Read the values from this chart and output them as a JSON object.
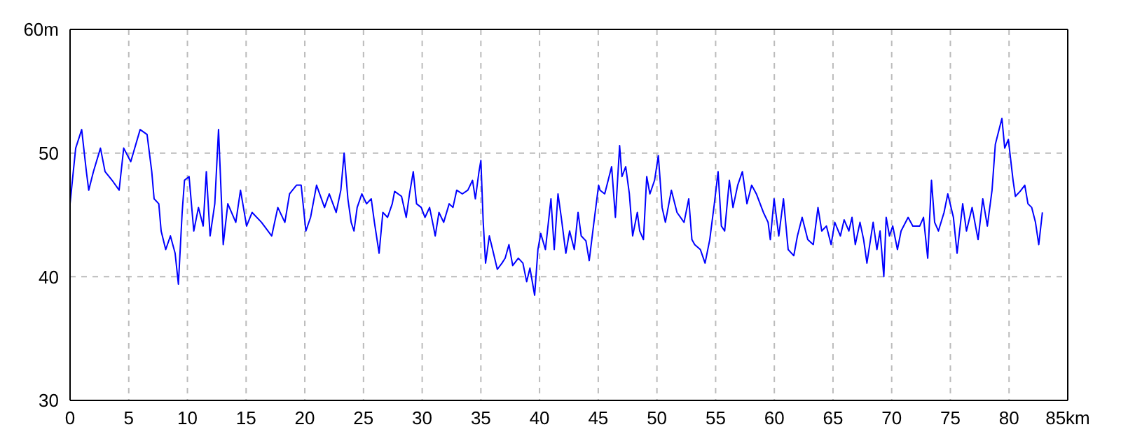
{
  "chart_data": {
    "type": "line",
    "color": "#0000ff",
    "marker": "none",
    "line_style": "solid",
    "grid": true,
    "xlim": [
      0,
      85
    ],
    "xticks": [
      0,
      5,
      10,
      15,
      20,
      25,
      30,
      35,
      40,
      45,
      50,
      55,
      60,
      65,
      70,
      75,
      80,
      {
        "value": 85,
        "label": "85km"
      }
    ],
    "ylim": [
      30,
      60
    ],
    "yticks": [
      30,
      40,
      50,
      {
        "value": 60,
        "label": "60m"
      }
    ],
    "x": [
      0,
      0.2,
      0.48,
      0.99,
      1.39,
      1.59,
      1.99,
      2.59,
      2.98,
      3.58,
      4.18,
      4.57,
      5.17,
      5.97,
      6.56,
      6.96,
      7.16,
      7.56,
      7.76,
      8.15,
      8.55,
      8.95,
      9.23,
      9.55,
      9.75,
      10.14,
      10.54,
      10.94,
      11.34,
      11.61,
      11.93,
      12.33,
      12.65,
      13.05,
      13.44,
      14.12,
      14.52,
      15.04,
      15.51,
      16.31,
      17.18,
      17.7,
      18.3,
      18.7,
      19.29,
      19.69,
      20.09,
      20.49,
      21.0,
      21.68,
      22.08,
      22.67,
      23.07,
      23.35,
      23.67,
      23.95,
      24.19,
      24.46,
      24.86,
      25.26,
      25.66,
      25.93,
      26.33,
      26.65,
      27.05,
      27.45,
      27.65,
      28.24,
      28.64,
      28.92,
      29.24,
      29.52,
      29.92,
      30.24,
      30.63,
      30.95,
      31.11,
      31.43,
      31.83,
      32.3,
      32.62,
      32.94,
      33.42,
      33.89,
      34.29,
      34.53,
      34.84,
      35.0,
      35.2,
      35.4,
      35.72,
      36.0,
      36.4,
      36.8,
      37.07,
      37.39,
      37.71,
      38.19,
      38.58,
      38.9,
      39.18,
      39.58,
      39.86,
      40.1,
      40.5,
      40.97,
      41.25,
      41.57,
      41.85,
      42.24,
      42.56,
      42.96,
      43.28,
      43.55,
      43.95,
      44.23,
      44.63,
      45.03,
      45.15,
      45.55,
      46.14,
      46.46,
      46.82,
      47.02,
      47.34,
      47.65,
      47.93,
      48.33,
      48.53,
      48.85,
      49.13,
      49.4,
      49.8,
      50.12,
      50.44,
      50.72,
      51.23,
      51.71,
      52.31,
      52.71,
      52.98,
      53.22,
      53.7,
      54.1,
      54.5,
      54.89,
      55.21,
      55.49,
      55.77,
      56.17,
      56.48,
      56.88,
      57.28,
      57.67,
      58.07,
      58.47,
      59.07,
      59.47,
      59.66,
      59.98,
      60.38,
      60.78,
      61.18,
      61.66,
      61.97,
      62.37,
      62.85,
      63.32,
      63.72,
      64.04,
      64.44,
      64.84,
      65.15,
      65.63,
      65.95,
      66.35,
      66.62,
      66.9,
      67.3,
      67.61,
      67.89,
      68.42,
      68.74,
      69.01,
      69.33,
      69.53,
      69.81,
      70.09,
      70.49,
      70.8,
      71.4,
      71.8,
      72.39,
      72.71,
      73.07,
      73.39,
      73.66,
      73.98,
      74.46,
      74.78,
      75.26,
      75.57,
      76.05,
      76.37,
      76.85,
      77.36,
      77.76,
      78.15,
      78.55,
      78.83,
      79.15,
      79.39,
      79.63,
      79.94,
      80.34,
      80.54,
      80.94,
      81.34,
      81.61,
      81.93,
      82.25,
      82.53,
      82.84
    ],
    "values": [
      45.9,
      47.8,
      50.4,
      51.9,
      48.5,
      47.0,
      48.5,
      50.4,
      48.5,
      47.8,
      47.0,
      50.4,
      49.3,
      51.9,
      51.5,
      48.5,
      46.3,
      45.9,
      43.7,
      42.2,
      43.3,
      41.9,
      39.4,
      45.2,
      47.8,
      48.1,
      43.7,
      45.6,
      44.1,
      48.5,
      43.3,
      45.9,
      51.9,
      42.6,
      45.9,
      44.4,
      47.0,
      44.1,
      45.2,
      44.4,
      43.3,
      45.6,
      44.4,
      46.7,
      47.4,
      47.4,
      43.7,
      44.8,
      47.4,
      45.6,
      46.7,
      45.2,
      47.0,
      50.0,
      46.3,
      44.4,
      43.7,
      45.6,
      46.7,
      45.9,
      46.3,
      44.4,
      41.9,
      45.2,
      44.8,
      45.9,
      46.9,
      46.5,
      44.8,
      46.7,
      48.5,
      45.9,
      45.6,
      44.8,
      45.6,
      44.1,
      43.3,
      45.2,
      44.4,
      45.9,
      45.6,
      47.0,
      46.7,
      47.0,
      47.8,
      46.3,
      48.5,
      49.4,
      44.4,
      41.1,
      43.3,
      42.2,
      40.6,
      41.1,
      41.5,
      42.6,
      40.9,
      41.5,
      41.1,
      39.6,
      40.7,
      38.5,
      42.2,
      43.5,
      42.2,
      46.3,
      42.2,
      46.7,
      44.8,
      41.9,
      43.7,
      42.2,
      45.2,
      43.3,
      42.9,
      41.3,
      44.4,
      47.4,
      47.0,
      46.7,
      48.9,
      44.8,
      50.6,
      48.1,
      48.9,
      46.7,
      43.3,
      45.2,
      43.7,
      43.0,
      48.1,
      46.7,
      47.8,
      49.8,
      45.6,
      44.4,
      47.0,
      45.2,
      44.4,
      46.3,
      43.0,
      42.6,
      42.2,
      41.1,
      43.0,
      45.9,
      48.5,
      44.1,
      43.7,
      47.8,
      45.6,
      47.4,
      48.5,
      45.9,
      47.4,
      46.7,
      45.2,
      44.4,
      43.0,
      46.3,
      43.3,
      46.3,
      42.2,
      41.7,
      43.3,
      44.8,
      43.0,
      42.6,
      45.6,
      43.7,
      44.1,
      42.6,
      44.4,
      43.3,
      44.6,
      43.7,
      44.8,
      42.6,
      44.4,
      43.0,
      41.1,
      44.4,
      42.2,
      43.7,
      40.0,
      44.8,
      43.3,
      44.1,
      42.2,
      43.7,
      44.8,
      44.1,
      44.1,
      44.8,
      41.5,
      47.8,
      44.4,
      43.7,
      45.2,
      46.7,
      44.8,
      41.9,
      45.9,
      43.7,
      45.6,
      43.0,
      46.3,
      44.1,
      47.0,
      50.7,
      51.9,
      52.8,
      50.4,
      51.1,
      47.8,
      46.5,
      46.9,
      47.4,
      45.9,
      45.6,
      44.4,
      42.6,
      45.2
    ]
  }
}
